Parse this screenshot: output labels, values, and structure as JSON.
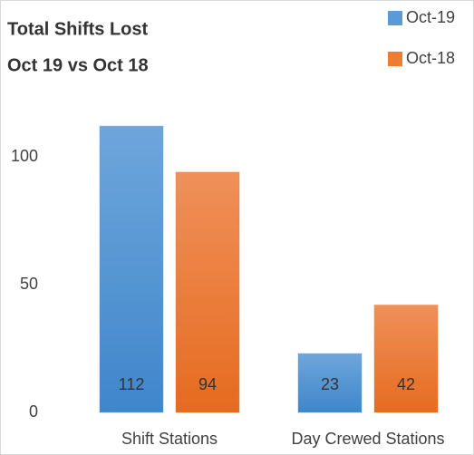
{
  "chart_data": {
    "type": "bar",
    "title": "Total Shifts Lost",
    "subtitle": "Oct 19 vs Oct 18",
    "categories": [
      "Shift Stations",
      "Day Crewed Stations"
    ],
    "series": [
      {
        "name": "Oct-19",
        "color": "#5b9bd5",
        "values": [
          112,
          23
        ]
      },
      {
        "name": "Oct-18",
        "color": "#ed7d31",
        "values": [
          94,
          42
        ]
      }
    ],
    "ylim": [
      0,
      125
    ],
    "yticks": [
      0,
      50,
      100
    ],
    "grid": false,
    "legend": "top-right"
  }
}
